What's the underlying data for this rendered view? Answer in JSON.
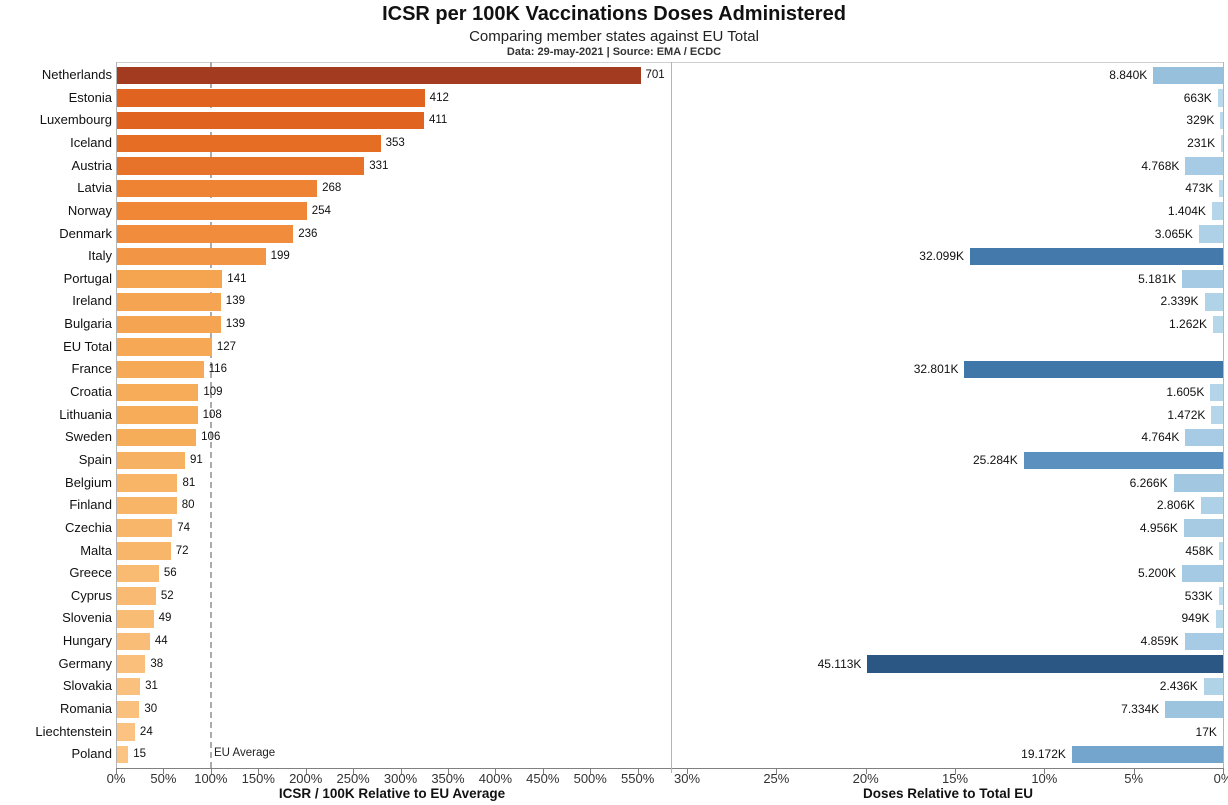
{
  "chart_data": {
    "type": "bar",
    "orientation": "horizontal",
    "title": "ICSR per 100K Vaccinations Doses Administered",
    "subtitle": "Comparing member states against EU Total",
    "source_line": "Data: 29-may-2021 | Source: EMA / ECDC",
    "left_panel": {
      "xlabel": "ICSR / 100K Relative to EU Average",
      "tick_labels": [
        "0%",
        "50%",
        "100%",
        "150%",
        "200%",
        "250%",
        "300%",
        "350%",
        "400%",
        "450%",
        "500%",
        "550%"
      ],
      "tick_values_pct": [
        0,
        50,
        100,
        150,
        200,
        250,
        300,
        350,
        400,
        450,
        500,
        550
      ],
      "xlim_pct": [
        0,
        582
      ],
      "eu_reference_icsr": 127,
      "reference_line": {
        "label": "EU Average",
        "at_pct": 100
      },
      "grid": false
    },
    "right_panel": {
      "xlabel": "Doses Relative to Total EU",
      "tick_labels": [
        "30%",
        "25%",
        "20%",
        "15%",
        "10%",
        "5%",
        "0%"
      ],
      "tick_values_pct": [
        30,
        25,
        20,
        15,
        10,
        5,
        0
      ],
      "xlim_pct": [
        30.84,
        0
      ],
      "reversed": true,
      "grid": false
    },
    "rows": [
      {
        "country": "Netherlands",
        "icsr": 701,
        "icsr_color": "#a33b20",
        "doses_label": "8.840K",
        "doses_k": 8840,
        "doses_color": "#97c0dc"
      },
      {
        "country": "Estonia",
        "icsr": 412,
        "icsr_color": "#e0641f",
        "doses_label": "663K",
        "doses_k": 663,
        "doses_color": "#b8d8eb"
      },
      {
        "country": "Luxembourg",
        "icsr": 411,
        "icsr_color": "#e0641f",
        "doses_label": "329K",
        "doses_k": 329,
        "doses_color": "#bad9ec"
      },
      {
        "country": "Iceland",
        "icsr": 353,
        "icsr_color": "#e56d24",
        "doses_label": "231K",
        "doses_k": 231,
        "doses_color": "#badaec"
      },
      {
        "country": "Austria",
        "icsr": 331,
        "icsr_color": "#e7722a",
        "doses_label": "4.768K",
        "doses_k": 4768,
        "doses_color": "#a7cbe4"
      },
      {
        "country": "Latvia",
        "icsr": 268,
        "icsr_color": "#ee8333",
        "doses_label": "473K",
        "doses_k": 473,
        "doses_color": "#b9d9ec"
      },
      {
        "country": "Norway",
        "icsr": 254,
        "icsr_color": "#ef8737",
        "doses_label": "1.404K",
        "doses_k": 1404,
        "doses_color": "#b5d6ea"
      },
      {
        "country": "Denmark",
        "icsr": 236,
        "icsr_color": "#f08c3c",
        "doses_label": "3.065K",
        "doses_k": 3065,
        "doses_color": "#aed1e7"
      },
      {
        "country": "Italy",
        "icsr": 199,
        "icsr_color": "#f29645",
        "doses_label": "32.099K",
        "doses_k": 32099,
        "doses_color": "#4379ab"
      },
      {
        "country": "Portugal",
        "icsr": 141,
        "icsr_color": "#f5a550",
        "doses_label": "5.181K",
        "doses_k": 5181,
        "doses_color": "#a5cae3"
      },
      {
        "country": "Ireland",
        "icsr": 139,
        "icsr_color": "#f5a551",
        "doses_label": "2.339K",
        "doses_k": 2339,
        "doses_color": "#b1d3e8"
      },
      {
        "country": "Bulgaria",
        "icsr": 139,
        "icsr_color": "#f5a551",
        "doses_label": "1.262K",
        "doses_k": 1262,
        "doses_color": "#b6d6ea"
      },
      {
        "country": "EU Total",
        "icsr": 127,
        "icsr_color": "#f6a854",
        "doses_label": "",
        "doses_k": null,
        "doses_color": null
      },
      {
        "country": "France",
        "icsr": 116,
        "icsr_color": "#f6aa57",
        "doses_label": "32.801K",
        "doses_k": 32801,
        "doses_color": "#4077a9"
      },
      {
        "country": "Croatia",
        "icsr": 109,
        "icsr_color": "#f6ac59",
        "doses_label": "1.605K",
        "doses_k": 1605,
        "doses_color": "#b4d5e9"
      },
      {
        "country": "Lithuania",
        "icsr": 108,
        "icsr_color": "#f6ac59",
        "doses_label": "1.472K",
        "doses_k": 1472,
        "doses_color": "#b5d5ea"
      },
      {
        "country": "Sweden",
        "icsr": 106,
        "icsr_color": "#f6ad5a",
        "doses_label": "4.764K",
        "doses_k": 4764,
        "doses_color": "#a7cbe4"
      },
      {
        "country": "Spain",
        "icsr": 91,
        "icsr_color": "#f7b162",
        "doses_label": "25.284K",
        "doses_k": 25284,
        "doses_color": "#5b90bf"
      },
      {
        "country": "Belgium",
        "icsr": 81,
        "icsr_color": "#f8b467",
        "doses_label": "6.266K",
        "doses_k": 6266,
        "doses_color": "#a1c7e1"
      },
      {
        "country": "Finland",
        "icsr": 80,
        "icsr_color": "#f8b467",
        "doses_label": "2.806K",
        "doses_k": 2806,
        "doses_color": "#afd1e7"
      },
      {
        "country": "Czechia",
        "icsr": 74,
        "icsr_color": "#f8b66b",
        "doses_label": "4.956K",
        "doses_k": 4956,
        "doses_color": "#a6cbe3"
      },
      {
        "country": "Malta",
        "icsr": 72,
        "icsr_color": "#f8b66b",
        "doses_label": "458K",
        "doses_k": 458,
        "doses_color": "#b9d9ec"
      },
      {
        "country": "Greece",
        "icsr": 56,
        "icsr_color": "#f9ba72",
        "doses_label": "5.200K",
        "doses_k": 5200,
        "doses_color": "#a5cae3"
      },
      {
        "country": "Cyprus",
        "icsr": 52,
        "icsr_color": "#f9bb74",
        "doses_label": "533K",
        "doses_k": 533,
        "doses_color": "#b9d9ec"
      },
      {
        "country": "Slovenia",
        "icsr": 49,
        "icsr_color": "#f9bc75",
        "doses_label": "949K",
        "doses_k": 949,
        "doses_color": "#b7d7eb"
      },
      {
        "country": "Hungary",
        "icsr": 44,
        "icsr_color": "#fabd77",
        "doses_label": "4.859K",
        "doses_k": 4859,
        "doses_color": "#a7cbe4"
      },
      {
        "country": "Germany",
        "icsr": 38,
        "icsr_color": "#fabf7a",
        "doses_label": "45.113K",
        "doses_k": 45113,
        "doses_color": "#2a5783"
      },
      {
        "country": "Slovakia",
        "icsr": 31,
        "icsr_color": "#fac17e",
        "doses_label": "2.436K",
        "doses_k": 2436,
        "doses_color": "#b1d3e8"
      },
      {
        "country": "Romania",
        "icsr": 30,
        "icsr_color": "#fac17e",
        "doses_label": "7.334K",
        "doses_k": 7334,
        "doses_color": "#9cc4df"
      },
      {
        "country": "Liechtenstein",
        "icsr": 24,
        "icsr_color": "#fbc281",
        "doses_label": "17K",
        "doses_k": 17,
        "doses_color": "#bbdaed"
      },
      {
        "country": "Poland",
        "icsr": 15,
        "icsr_color": "#fbc483",
        "doses_label": "19.172K",
        "doses_k": 19172,
        "doses_color": "#74a5cd"
      }
    ]
  }
}
